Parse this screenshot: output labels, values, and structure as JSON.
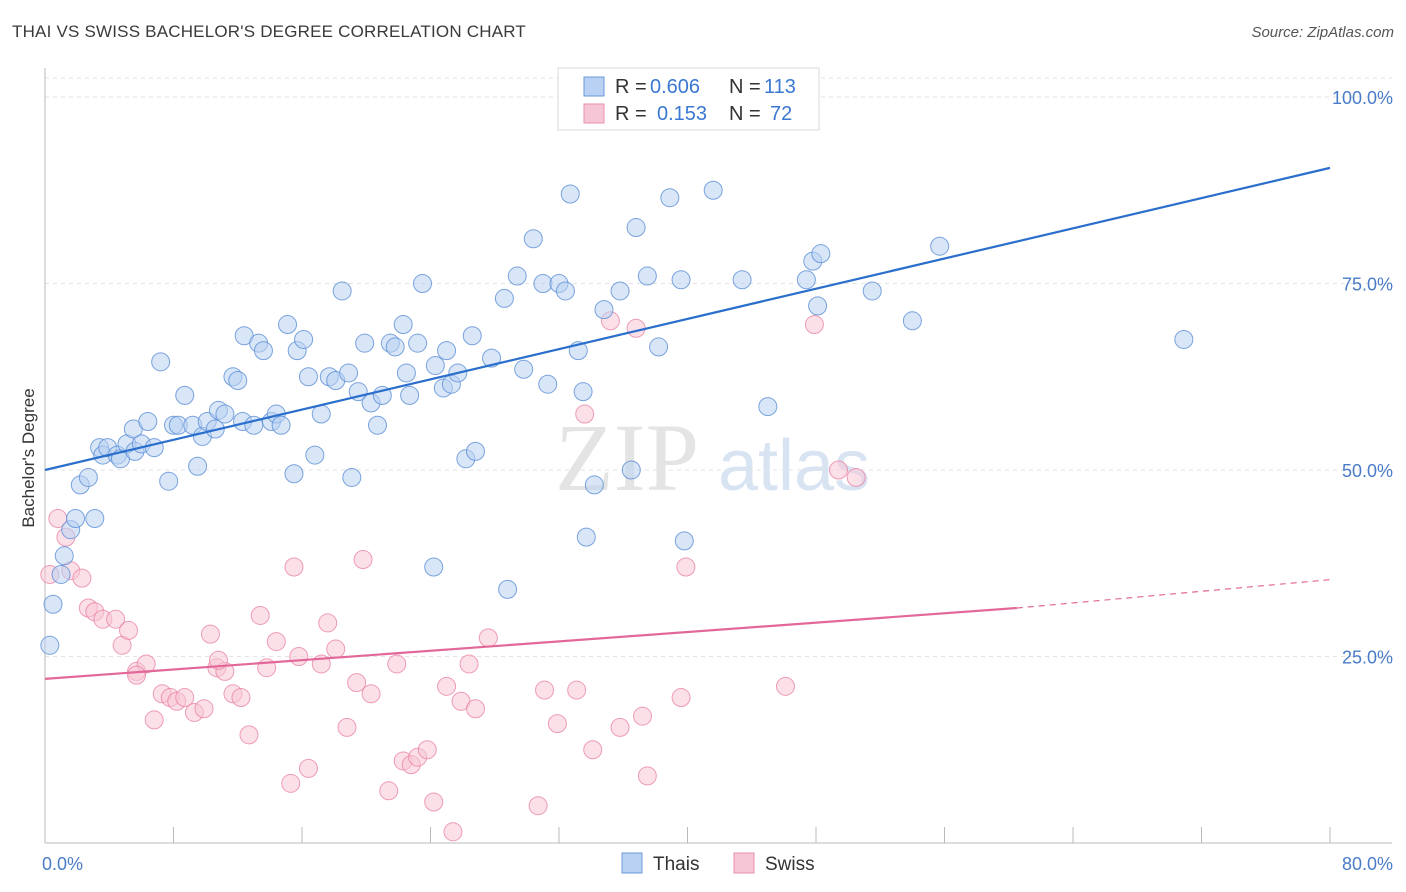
{
  "title": "THAI VS SWISS BACHELOR'S DEGREE CORRELATION CHART",
  "source": "Source: ZipAtlas.com",
  "watermark": {
    "zip": "ZIP",
    "atlas": "atlas"
  },
  "stats_legend": [
    {
      "r_label": "R =",
      "r_value": "0.606",
      "n_label": "N =",
      "n_value": "113"
    },
    {
      "r_label": "R =",
      "r_value": "0.153",
      "n_label": "N =",
      "n_value": "72"
    }
  ],
  "chart_data": {
    "type": "scatter",
    "title": "THAI VS SWISS BACHELOR'S DEGREE CORRELATION CHART",
    "xlabel": "",
    "ylabel": "Bachelor's Degree",
    "xlim": [
      0,
      80
    ],
    "ylim": [
      0,
      103
    ],
    "x_tick_labels": [
      "0.0%",
      "80.0%"
    ],
    "y_ticks": [
      25,
      50,
      75,
      100
    ],
    "y_tick_labels": [
      "25.0%",
      "50.0%",
      "75.0%",
      "100.0%"
    ],
    "grid": true,
    "legend_position": "top-center",
    "colors": {
      "thais": "#5b8fd6",
      "swiss": "#e87fa1",
      "thais_line": "#2a6fcc",
      "swiss_line": "#e2689a"
    },
    "series": [
      {
        "name": "Thais",
        "trend": {
          "x0": 0,
          "y0": 50,
          "x1": 80,
          "y1": 90.5
        },
        "points": [
          [
            0.3,
            26.5
          ],
          [
            0.5,
            32
          ],
          [
            1,
            36
          ],
          [
            1.2,
            38.5
          ],
          [
            1.6,
            42
          ],
          [
            1.9,
            43.5
          ],
          [
            2.2,
            48
          ],
          [
            2.7,
            49
          ],
          [
            3.1,
            43.5
          ],
          [
            3.4,
            53
          ],
          [
            3.6,
            52
          ],
          [
            3.9,
            53
          ],
          [
            4.5,
            52
          ],
          [
            4.7,
            51.5
          ],
          [
            5.1,
            53.5
          ],
          [
            5.5,
            55.5
          ],
          [
            5.6,
            52.5
          ],
          [
            6,
            53.5
          ],
          [
            6.4,
            56.5
          ],
          [
            6.8,
            53
          ],
          [
            7.2,
            64.5
          ],
          [
            7.7,
            48.5
          ],
          [
            8,
            56
          ],
          [
            8.3,
            56
          ],
          [
            8.7,
            60
          ],
          [
            9.2,
            56
          ],
          [
            9.5,
            50.5
          ],
          [
            9.8,
            54.5
          ],
          [
            10.1,
            56.5
          ],
          [
            10.6,
            55.5
          ],
          [
            10.8,
            58
          ],
          [
            11.2,
            57.5
          ],
          [
            11.7,
            62.5
          ],
          [
            12,
            62
          ],
          [
            12.3,
            56.5
          ],
          [
            12.4,
            68
          ],
          [
            13,
            56
          ],
          [
            13.3,
            67
          ],
          [
            13.6,
            66
          ],
          [
            14.1,
            56.5
          ],
          [
            14.4,
            57.5
          ],
          [
            14.7,
            56
          ],
          [
            15.1,
            69.5
          ],
          [
            15.5,
            49.5
          ],
          [
            15.7,
            66
          ],
          [
            16.1,
            67.5
          ],
          [
            16.4,
            62.5
          ],
          [
            16.8,
            52
          ],
          [
            17.2,
            57.5
          ],
          [
            17.7,
            62.5
          ],
          [
            18.1,
            62
          ],
          [
            18.5,
            74
          ],
          [
            18.9,
            63
          ],
          [
            19.1,
            49
          ],
          [
            19.5,
            60.5
          ],
          [
            19.9,
            67
          ],
          [
            20.3,
            59
          ],
          [
            20.7,
            56
          ],
          [
            21,
            60
          ],
          [
            21.5,
            67
          ],
          [
            21.8,
            66.5
          ],
          [
            22.3,
            69.5
          ],
          [
            22.5,
            63
          ],
          [
            22.7,
            60
          ],
          [
            23.2,
            67
          ],
          [
            23.5,
            75
          ],
          [
            24.3,
            64
          ],
          [
            24.8,
            61
          ],
          [
            25,
            66
          ],
          [
            25.3,
            61.5
          ],
          [
            25.7,
            63
          ],
          [
            26.2,
            51.5
          ],
          [
            26.6,
            68
          ],
          [
            26.8,
            52.5
          ],
          [
            27.8,
            65
          ],
          [
            28.6,
            73
          ],
          [
            28.8,
            34
          ],
          [
            29.4,
            76
          ],
          [
            29.8,
            63.5
          ],
          [
            30.4,
            81
          ],
          [
            31,
            75
          ],
          [
            31.3,
            61.5
          ],
          [
            32,
            75
          ],
          [
            32.4,
            74
          ],
          [
            32.7,
            87
          ],
          [
            33.2,
            66
          ],
          [
            33.5,
            60.5
          ],
          [
            33.7,
            41
          ],
          [
            34.2,
            48
          ],
          [
            34.8,
            71.5
          ],
          [
            35.8,
            74
          ],
          [
            36.5,
            50
          ],
          [
            36.8,
            82.5
          ],
          [
            37.5,
            76
          ],
          [
            38.2,
            66.5
          ],
          [
            38.9,
            86.5
          ],
          [
            39.6,
            75.5
          ],
          [
            39.8,
            40.5
          ],
          [
            41.6,
            87.5
          ],
          [
            43.4,
            75.5
          ],
          [
            45,
            58.5
          ],
          [
            47.4,
            75.5
          ],
          [
            47.8,
            78
          ],
          [
            48.1,
            72
          ],
          [
            48.3,
            79
          ],
          [
            51.5,
            74
          ],
          [
            54,
            70
          ],
          [
            55.7,
            80
          ],
          [
            70.9,
            67.5
          ],
          [
            24.2,
            37
          ]
        ]
      },
      {
        "name": "Swiss",
        "trend": {
          "x0": 0,
          "y0": 22,
          "x1": 60.5,
          "y1": 31.5,
          "x_dash_end": 80,
          "y_dash_end": 35.3
        },
        "points": [
          [
            0.3,
            36
          ],
          [
            0.8,
            43.5
          ],
          [
            1.3,
            41
          ],
          [
            1.6,
            36.5
          ],
          [
            2.3,
            35.5
          ],
          [
            2.7,
            31.5
          ],
          [
            3.1,
            31
          ],
          [
            3.6,
            30
          ],
          [
            4.4,
            30
          ],
          [
            4.8,
            26.5
          ],
          [
            5.2,
            28.5
          ],
          [
            5.7,
            23
          ],
          [
            6.3,
            24
          ],
          [
            6.8,
            16.5
          ],
          [
            7.3,
            20
          ],
          [
            7.8,
            19.5
          ],
          [
            8.2,
            19
          ],
          [
            8.7,
            19.5
          ],
          [
            9.3,
            17.5
          ],
          [
            9.9,
            18
          ],
          [
            10.3,
            28
          ],
          [
            10.7,
            23.5
          ],
          [
            11.2,
            23
          ],
          [
            11.7,
            20
          ],
          [
            12.2,
            19.5
          ],
          [
            12.7,
            14.5
          ],
          [
            13.4,
            30.5
          ],
          [
            13.8,
            23.5
          ],
          [
            14.4,
            27
          ],
          [
            15.3,
            8
          ],
          [
            15.5,
            37
          ],
          [
            15.8,
            25
          ],
          [
            16.4,
            10
          ],
          [
            17.2,
            24
          ],
          [
            17.6,
            29.5
          ],
          [
            18.1,
            26
          ],
          [
            18.8,
            15.5
          ],
          [
            19.4,
            21.5
          ],
          [
            19.8,
            38
          ],
          [
            20.3,
            20
          ],
          [
            21.4,
            7
          ],
          [
            21.9,
            24
          ],
          [
            22.3,
            11
          ],
          [
            22.8,
            10.5
          ],
          [
            23.2,
            11.5
          ],
          [
            23.8,
            12.5
          ],
          [
            24.2,
            5.5
          ],
          [
            25,
            21
          ],
          [
            25.4,
            1.5
          ],
          [
            25.9,
            19
          ],
          [
            26.4,
            24
          ],
          [
            26.8,
            18
          ],
          [
            27.6,
            27.5
          ],
          [
            30.7,
            5
          ],
          [
            31.1,
            20.5
          ],
          [
            31.9,
            16
          ],
          [
            33.1,
            20.5
          ],
          [
            33.6,
            57.5
          ],
          [
            34.1,
            12.5
          ],
          [
            35.2,
            70
          ],
          [
            35.8,
            15.5
          ],
          [
            36.8,
            69
          ],
          [
            37.2,
            17
          ],
          [
            37.5,
            9
          ],
          [
            39.6,
            19.5
          ],
          [
            39.9,
            37
          ],
          [
            46.1,
            21
          ],
          [
            47.9,
            69.5
          ],
          [
            49.4,
            50
          ],
          [
            50.5,
            49
          ],
          [
            10.8,
            24.5
          ],
          [
            5.7,
            22.5
          ]
        ]
      }
    ]
  },
  "bottom_legend": [
    {
      "label": "Thais"
    },
    {
      "label": "Swiss"
    }
  ]
}
